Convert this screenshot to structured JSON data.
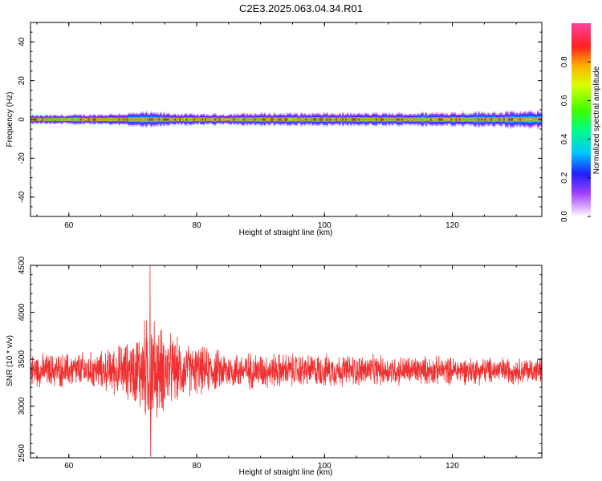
{
  "title": "C2E3.2025.063.04.34.R01",
  "colors": {
    "snr_line": "#f03030",
    "frame": "#000000",
    "spectrogram_background": "#ffffff"
  },
  "chart_data": [
    {
      "type": "heatmap",
      "xlabel": "Height of straight line (km)",
      "ylabel": "Frequency (Hz)",
      "xlim": [
        54,
        134
      ],
      "ylim": [
        -50,
        50
      ],
      "x_ticks": [
        "60",
        "80",
        "100",
        "120"
      ],
      "y_ticks": [
        "-40",
        "-20",
        "0",
        "20",
        "40"
      ],
      "colorbar": {
        "label": "Normalized spectral amplitude",
        "ticks": [
          "0.0",
          "0.2",
          "0.4",
          "0.6",
          "0.8"
        ],
        "range": [
          0,
          1
        ]
      },
      "band": {
        "description_values": "Spectral energy concentrated near 0 Hz across all heights",
        "center_frequency": 0,
        "core_halfwidth_hz": 0.7,
        "outer_halfwidth_by_height": [
          {
            "height": 54,
            "hz": 2.0
          },
          {
            "height": 65,
            "hz": 2.5
          },
          {
            "height": 72,
            "hz": 3.5
          },
          {
            "height": 80,
            "hz": 2.5
          },
          {
            "height": 90,
            "hz": 3.0
          },
          {
            "height": 110,
            "hz": 3.0
          },
          {
            "height": 134,
            "hz": 4.0
          }
        ]
      }
    },
    {
      "type": "line",
      "xlabel": "Height of straight line (km)",
      "ylabel": "SNR (10 * v/v)",
      "xlim": [
        54,
        134
      ],
      "ylim": [
        2450,
        4500
      ],
      "x_ticks": [
        "60",
        "80",
        "100",
        "120"
      ],
      "y_ticks": [
        "2500",
        "3000",
        "3500",
        "4000",
        "4500"
      ],
      "series": [
        {
          "baseline": 3380,
          "envelope": [
            {
              "height": 54,
              "amplitude": 200
            },
            {
              "height": 65,
              "amplitude": 230
            },
            {
              "height": 70,
              "amplitude": 380
            },
            {
              "height": 72.5,
              "amplitude": 700
            },
            {
              "height": 75,
              "amplitude": 500
            },
            {
              "height": 78,
              "amplitude": 330
            },
            {
              "height": 85,
              "amplitude": 230
            },
            {
              "height": 100,
              "amplitude": 200
            },
            {
              "height": 120,
              "amplitude": 170
            },
            {
              "height": 134,
              "amplitude": 160
            }
          ],
          "max_value": 4500,
          "max_height": 72.7,
          "min_value": 2460,
          "min_height": 72.8
        }
      ]
    }
  ]
}
